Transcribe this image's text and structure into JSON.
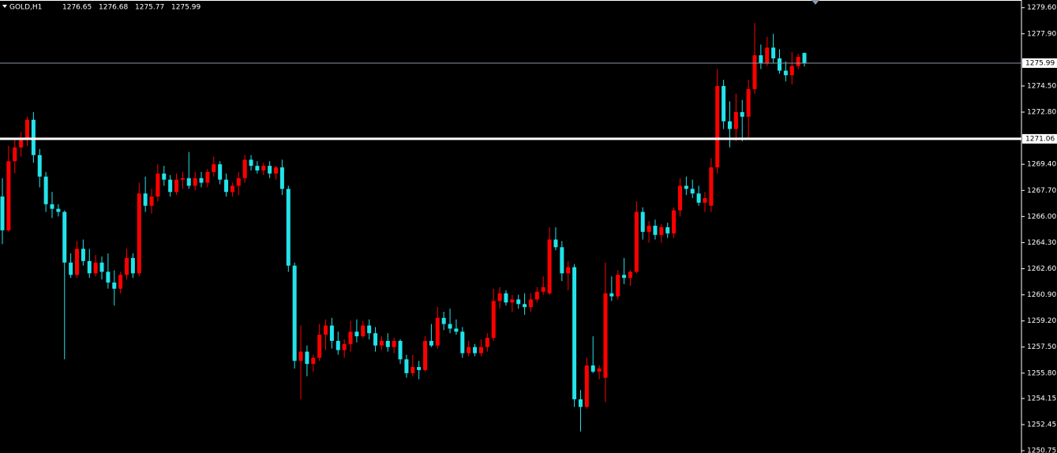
{
  "chart_data": {
    "type": "candlestick",
    "symbol": "GOLD,H1",
    "quote": [
      1276.65,
      1276.68,
      1275.77,
      1275.99
    ],
    "bull_color": "#ff0000",
    "bear_color": "#22e3ea",
    "ylim": [
      1250.6,
      1280.1
    ],
    "yticks": [
      {
        "value": 1279.6,
        "label": "1279.60"
      },
      {
        "value": 1277.9,
        "label": "1277.90"
      },
      {
        "value": 1274.5,
        "label": "1274.50"
      },
      {
        "value": 1272.8,
        "label": "1272.80"
      },
      {
        "value": 1269.4,
        "label": "1269.40"
      },
      {
        "value": 1267.7,
        "label": "1267.70"
      },
      {
        "value": 1266.0,
        "label": "1266.00"
      },
      {
        "value": 1264.3,
        "label": "1264.30"
      },
      {
        "value": 1262.6,
        "label": "1262.60"
      },
      {
        "value": 1260.9,
        "label": "1260.90"
      },
      {
        "value": 1259.2,
        "label": "1259.20"
      },
      {
        "value": 1257.5,
        "label": "1257.50"
      },
      {
        "value": 1255.8,
        "label": "1255.80"
      },
      1254.15,
      1252.45,
      1250.75
    ],
    "price_line": 1275.99,
    "level_line": 1271.06,
    "open": [
      1267.3,
      1265.1,
      1269.6,
      1270.5,
      1271.0,
      1272.3,
      1270.0,
      1268.6,
      1266.8,
      1266.5,
      1266.3,
      1263.0,
      1262.2,
      1263.9,
      1263.1,
      1262.3,
      1263.0,
      1262.4,
      1261.7,
      1261.3,
      1262.2,
      1263.3,
      1262.3,
      1267.5,
      1266.7,
      1267.3,
      1268.8,
      1268.4,
      1267.6,
      1268.4,
      1268.5,
      1268.0,
      1268.5,
      1268.2,
      1268.9,
      1269.4,
      1268.4,
      1267.6,
      1268.0,
      1268.5,
      1269.7,
      1269.3,
      1269.0,
      1269.3,
      1268.8,
      1269.2,
      1267.8,
      1262.8,
      1256.6,
      1257.2,
      1256.4,
      1256.8,
      1258.3,
      1258.9,
      1257.9,
      1257.3,
      1257.7,
      1258.5,
      1258.2,
      1258.9,
      1258.4,
      1257.6,
      1257.9,
      1257.5,
      1257.9,
      1256.7,
      1255.8,
      1256.2,
      1256.0,
      1257.9,
      1257.6,
      1259.4,
      1259.0,
      1258.7,
      1258.5,
      1257.1,
      1257.5,
      1257.1,
      1257.5,
      1258.1,
      1260.5,
      1261.0,
      1260.4,
      1260.6,
      1260.3,
      1260.1,
      1260.6,
      1261.1,
      1261.0,
      1264.5,
      1264.0,
      1262.3,
      1262.7,
      1254.1,
      1253.6,
      1256.3,
      1255.9,
      1255.5,
      1261.0,
      1260.8,
      1262.2,
      1262.0,
      1262.4,
      1266.3,
      1265.0,
      1265.4,
      1264.8,
      1265.3,
      1264.9,
      1266.4,
      1268.0,
      1267.8,
      1267.5,
      1266.9,
      1266.7,
      1269.2,
      1274.5,
      1272.2,
      1271.7,
      1272.8,
      1272.5,
      1274.3,
      1276.5,
      1276.0,
      1277.0,
      1276.3,
      1275.5,
      1275.2,
      1275.8,
      1276.65
    ],
    "high": [
      1268.5,
      1270.6,
      1271.0,
      1271.5,
      1272.5,
      1272.8,
      1270.4,
      1268.9,
      1267.6,
      1266.8,
      1266.4,
      1263.6,
      1264.4,
      1264.5,
      1263.9,
      1263.5,
      1263.4,
      1263.6,
      1262.5,
      1262.4,
      1263.9,
      1263.6,
      1268.2,
      1268.6,
      1267.8,
      1269.4,
      1269.3,
      1268.7,
      1268.8,
      1268.9,
      1270.2,
      1268.9,
      1268.9,
      1269.1,
      1269.9,
      1269.6,
      1268.8,
      1268.2,
      1268.9,
      1270.0,
      1270.0,
      1269.6,
      1269.5,
      1269.6,
      1269.3,
      1269.7,
      1268.0,
      1263.0,
      1258.9,
      1257.6,
      1257.0,
      1259.0,
      1259.3,
      1259.4,
      1258.5,
      1258.0,
      1259.2,
      1259.3,
      1259.2,
      1259.3,
      1258.8,
      1258.2,
      1258.4,
      1258.1,
      1258.0,
      1257.0,
      1257.0,
      1256.6,
      1258.2,
      1259.0,
      1260.1,
      1259.8,
      1260.0,
      1259.3,
      1258.8,
      1257.9,
      1257.7,
      1258.0,
      1258.4,
      1261.3,
      1261.4,
      1261.2,
      1260.9,
      1260.9,
      1261.0,
      1261.0,
      1261.4,
      1262.1,
      1265.3,
      1265.3,
      1264.4,
      1263.1,
      1262.9,
      1254.7,
      1256.8,
      1258.2,
      1256.3,
      1263.0,
      1262.1,
      1262.5,
      1263.3,
      1262.5,
      1267.0,
      1266.6,
      1265.7,
      1265.8,
      1265.5,
      1265.6,
      1266.6,
      1268.5,
      1268.6,
      1268.4,
      1268.0,
      1267.6,
      1269.8,
      1275.6,
      1274.9,
      1273.5,
      1274.0,
      1273.6,
      1274.9,
      1278.6,
      1277.2,
      1277.7,
      1277.9,
      1276.9,
      1276.1,
      1276.7,
      1276.6,
      1276.68
    ],
    "low": [
      1264.2,
      1265.0,
      1268.8,
      1269.9,
      1270.6,
      1269.5,
      1267.9,
      1266.3,
      1265.9,
      1266.0,
      1256.7,
      1262.0,
      1262.0,
      1262.8,
      1262.0,
      1262.1,
      1261.9,
      1261.3,
      1260.2,
      1261.0,
      1261.9,
      1262.0,
      1262.1,
      1266.3,
      1266.2,
      1267.0,
      1268.0,
      1267.3,
      1267.4,
      1267.8,
      1267.8,
      1267.7,
      1267.9,
      1267.9,
      1268.6,
      1268.1,
      1267.3,
      1267.3,
      1267.4,
      1268.2,
      1269.0,
      1268.8,
      1268.7,
      1268.5,
      1268.4,
      1267.4,
      1262.4,
      1256.1,
      1254.1,
      1255.6,
      1255.9,
      1256.6,
      1257.3,
      1257.4,
      1257.0,
      1256.8,
      1257.2,
      1257.8,
      1258.1,
      1258.0,
      1257.2,
      1257.3,
      1257.2,
      1257.1,
      1256.4,
      1255.5,
      1255.6,
      1255.4,
      1255.9,
      1257.5,
      1257.4,
      1258.6,
      1258.4,
      1258.3,
      1256.8,
      1256.9,
      1256.9,
      1256.9,
      1257.2,
      1257.9,
      1260.0,
      1260.2,
      1259.8,
      1260.0,
      1259.6,
      1259.8,
      1260.4,
      1260.9,
      1260.9,
      1263.8,
      1261.8,
      1261.2,
      1253.6,
      1252.0,
      1253.5,
      1255.8,
      1255.4,
      1253.9,
      1260.5,
      1260.6,
      1261.6,
      1261.5,
      1262.3,
      1264.5,
      1264.3,
      1264.5,
      1264.3,
      1264.6,
      1264.6,
      1266.0,
      1267.4,
      1267.2,
      1266.7,
      1266.3,
      1266.3,
      1268.8,
      1271.7,
      1270.5,
      1270.9,
      1270.9,
      1271.0,
      1274.0,
      1275.6,
      1275.8,
      1276.0,
      1275.3,
      1274.8,
      1274.6,
      1275.6,
      1275.77
    ],
    "close": [
      1265.1,
      1269.6,
      1270.5,
      1271.0,
      1272.3,
      1270.0,
      1268.6,
      1266.8,
      1266.5,
      1266.3,
      1263.0,
      1262.2,
      1263.9,
      1263.1,
      1262.3,
      1263.0,
      1262.4,
      1261.7,
      1261.3,
      1262.2,
      1263.3,
      1262.3,
      1267.5,
      1266.7,
      1267.3,
      1268.8,
      1268.4,
      1267.6,
      1268.4,
      1268.5,
      1268.0,
      1268.5,
      1268.2,
      1268.9,
      1269.4,
      1268.4,
      1267.6,
      1268.0,
      1268.5,
      1269.7,
      1269.3,
      1269.0,
      1269.3,
      1268.8,
      1269.2,
      1267.8,
      1262.8,
      1256.6,
      1257.2,
      1256.4,
      1256.8,
      1258.3,
      1258.9,
      1257.9,
      1257.3,
      1257.7,
      1258.5,
      1258.2,
      1258.9,
      1258.4,
      1257.6,
      1257.9,
      1257.5,
      1257.9,
      1256.7,
      1255.8,
      1256.2,
      1256.0,
      1257.9,
      1257.6,
      1259.4,
      1259.0,
      1258.7,
      1258.5,
      1257.1,
      1257.5,
      1257.1,
      1257.5,
      1258.1,
      1260.5,
      1261.0,
      1260.4,
      1260.6,
      1260.3,
      1260.1,
      1260.6,
      1261.1,
      1261.4,
      1264.5,
      1264.0,
      1262.3,
      1262.7,
      1254.1,
      1253.6,
      1256.3,
      1255.9,
      1256.1,
      1261.0,
      1260.8,
      1262.2,
      1262.0,
      1262.4,
      1266.3,
      1265.0,
      1265.4,
      1264.8,
      1265.3,
      1264.9,
      1266.4,
      1268.0,
      1267.8,
      1267.5,
      1266.9,
      1267.2,
      1269.2,
      1274.5,
      1272.2,
      1271.7,
      1272.8,
      1272.5,
      1274.3,
      1276.5,
      1276.0,
      1277.0,
      1276.3,
      1275.5,
      1275.2,
      1275.8,
      1276.4,
      1275.99
    ]
  }
}
